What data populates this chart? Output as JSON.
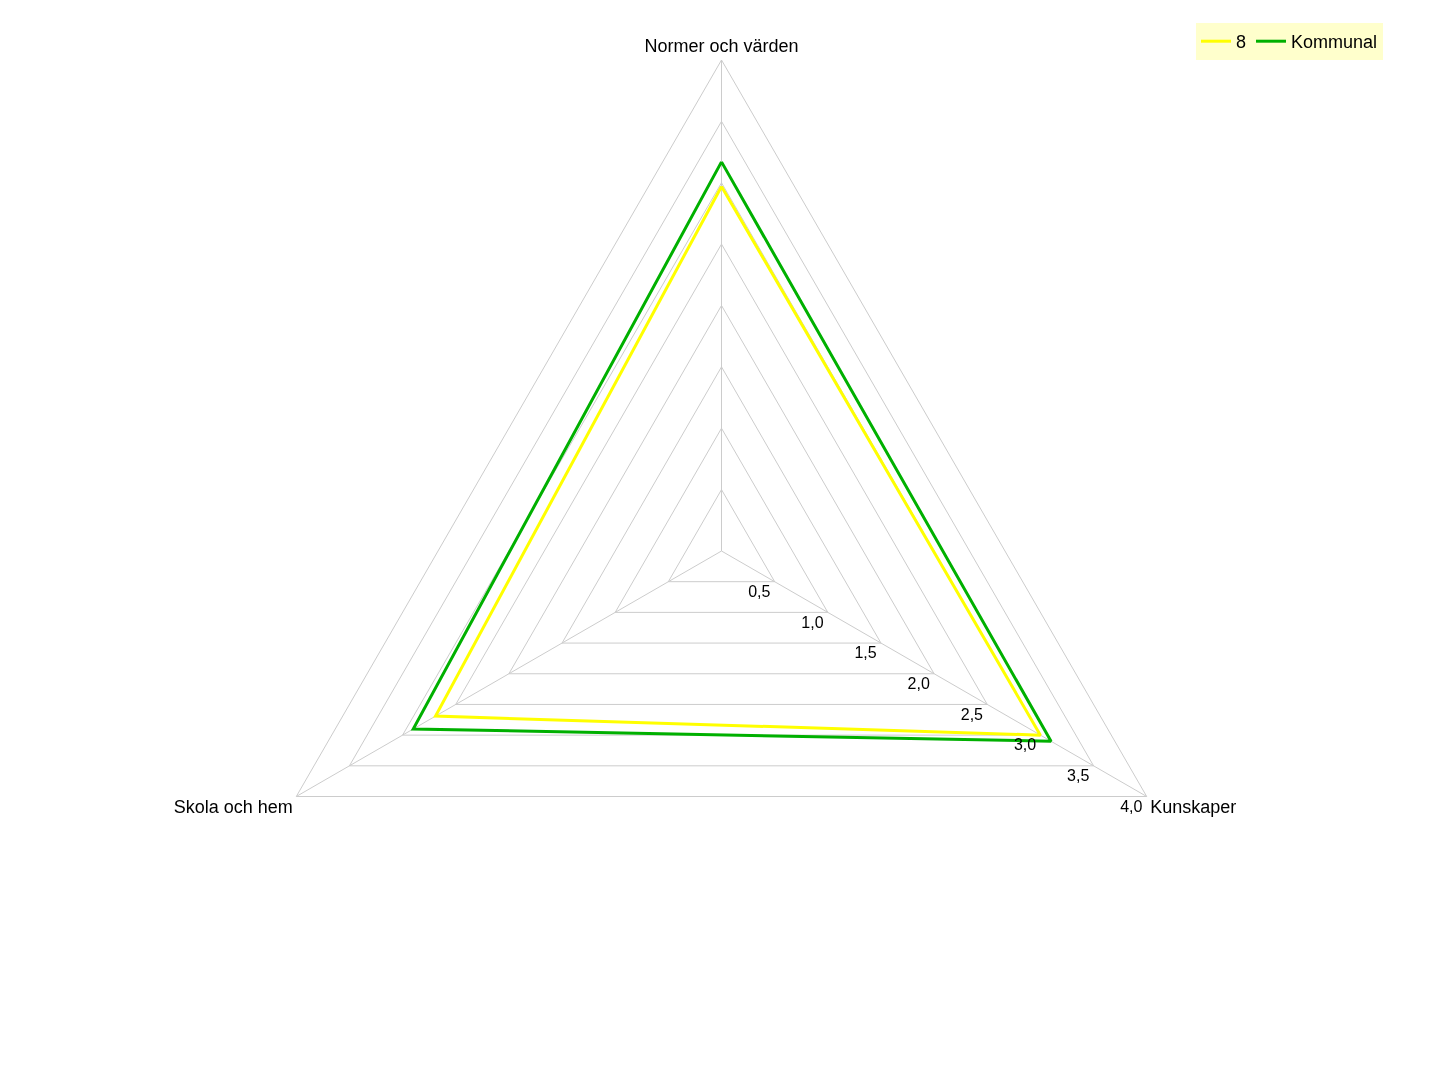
{
  "chart_data": {
    "type": "radar",
    "categories": [
      "Normer och värden",
      "Kunskaper",
      "Skola och hem"
    ],
    "series": [
      {
        "name": "8",
        "color": "#ffff00",
        "values": [
          2.97,
          3.0,
          2.69
        ]
      },
      {
        "name": "Kommunal",
        "color": "#00b000",
        "values": [
          3.17,
          3.1,
          2.9
        ]
      }
    ],
    "ylim": [
      0,
      4
    ],
    "yticks": [
      {
        "value": 0.5,
        "label": "0,5"
      },
      {
        "value": 1.0,
        "label": "1,0"
      },
      {
        "value": 1.5,
        "label": "1,5"
      },
      {
        "value": 2.0,
        "label": "2,0"
      },
      {
        "value": 2.5,
        "label": "2,5"
      },
      {
        "value": 3.0,
        "label": "3,0"
      },
      {
        "value": 3.5,
        "label": "3,5"
      },
      {
        "value": 4.0,
        "label": "4,0"
      }
    ],
    "grid": true,
    "legend": "top right",
    "marker": "none"
  }
}
